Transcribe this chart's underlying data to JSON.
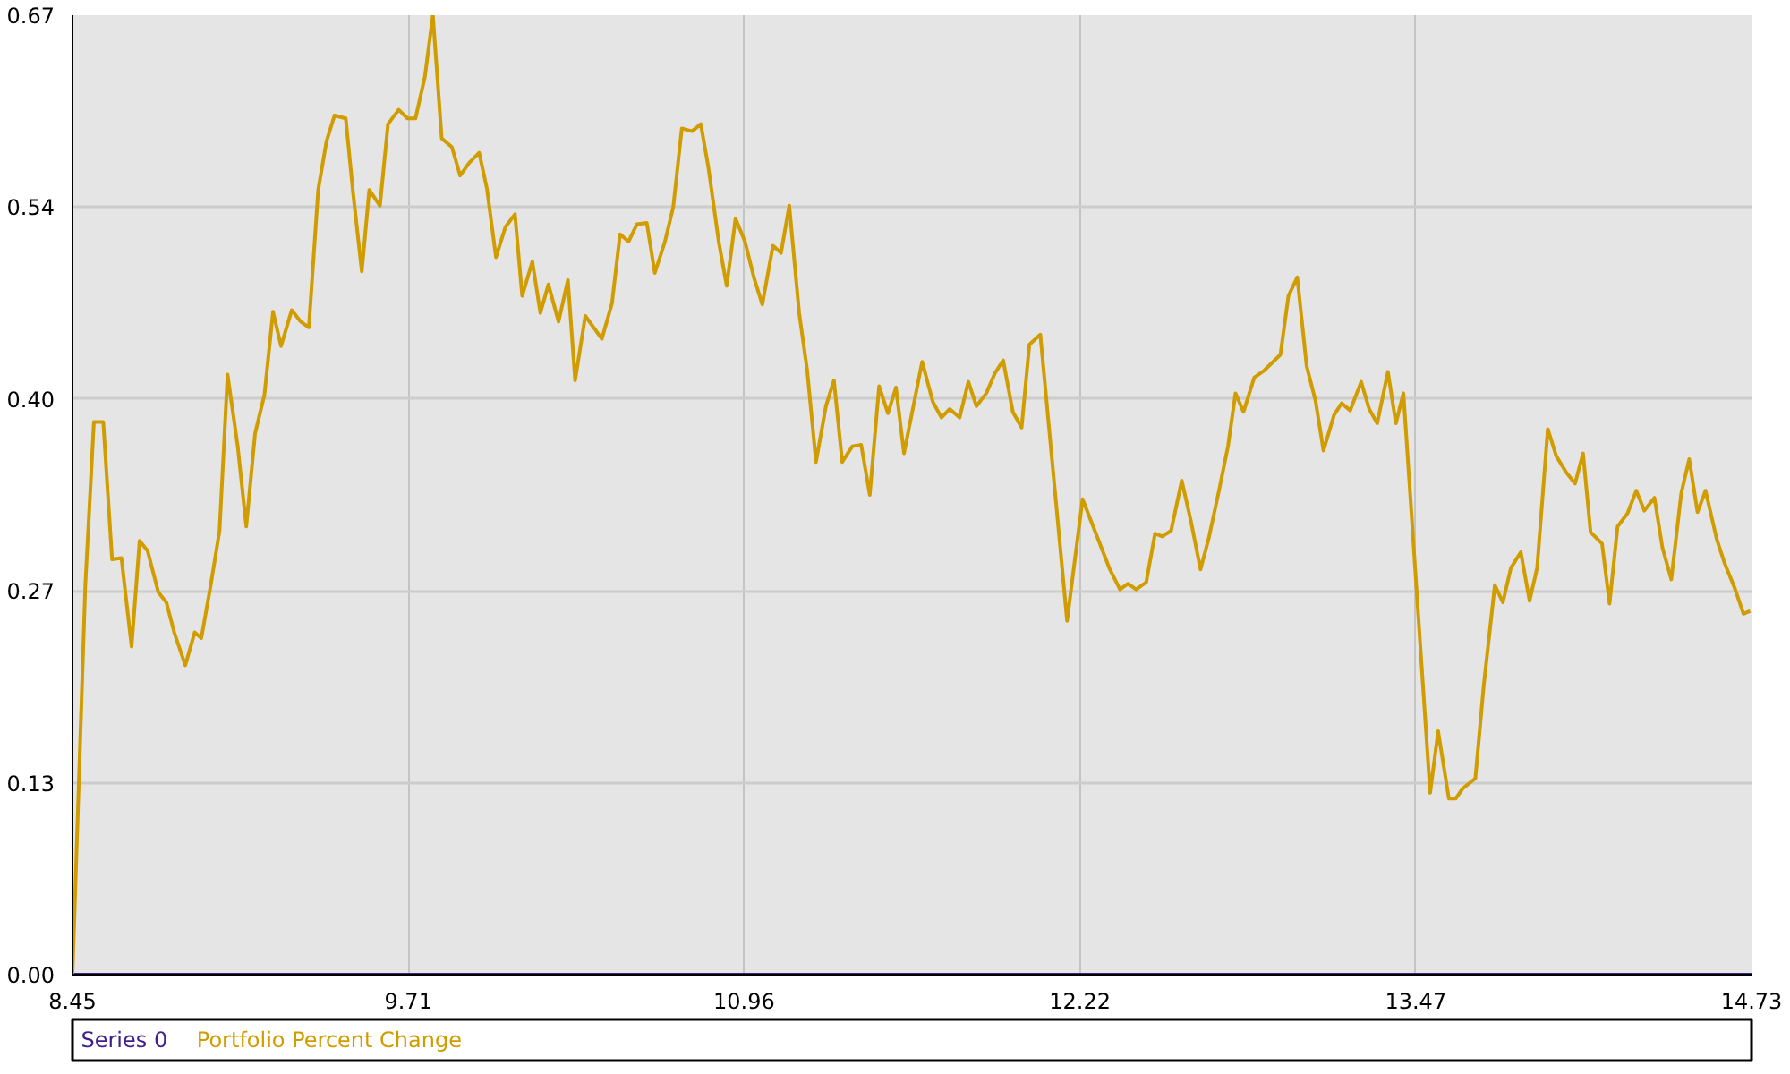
{
  "chart_data": {
    "type": "line",
    "xlim": [
      8.45,
      14.73
    ],
    "ylim": [
      0,
      0.67
    ],
    "xticks": [
      8.45,
      {
        "value": 9.706,
        "label": "9.71"
      },
      {
        "value": 10.962,
        "label": "10.96"
      },
      {
        "value": 12.218,
        "label": "12.22"
      },
      {
        "value": 13.474,
        "label": "13.47"
      },
      14.73
    ],
    "yticks": [
      {
        "value": 0,
        "label": "0.00"
      },
      {
        "value": 0.134,
        "label": "0.13"
      },
      {
        "value": 0.268,
        "label": "0.27"
      },
      {
        "value": 0.402,
        "label": "0.40"
      },
      {
        "value": 0.536,
        "label": "0.54"
      },
      0.67
    ],
    "grid": true,
    "legend": "bottom",
    "series": [
      {
        "name": "Series 0",
        "color": "#40208f",
        "x": [
          8.45,
          14.73
        ],
        "values": [
          0,
          0
        ]
      },
      {
        "name": "Portfolio Percent Change",
        "color": "#d09c00",
        "x": [
          8.45,
          8.498,
          8.53,
          8.565,
          8.598,
          8.633,
          8.671,
          8.701,
          8.731,
          8.771,
          8.801,
          8.832,
          8.872,
          8.907,
          8.932,
          8.967,
          9.0,
          9.03,
          9.068,
          9.1,
          9.133,
          9.168,
          9.2,
          9.23,
          9.27,
          9.304,
          9.334,
          9.369,
          9.4,
          9.43,
          9.472,
          9.5,
          9.532,
          9.56,
          9.6,
          9.63,
          9.67,
          9.703,
          9.733,
          9.768,
          9.798,
          9.831,
          9.869,
          9.9,
          9.934,
          9.971,
          10.0,
          10.034,
          10.069,
          10.105,
          10.132,
          10.17,
          10.2,
          10.23,
          10.268,
          10.303,
          10.33,
          10.368,
          10.43,
          10.468,
          10.498,
          10.53,
          10.561,
          10.598,
          10.628,
          10.666,
          10.697,
          10.729,
          10.767,
          10.8,
          10.829,
          10.867,
          10.897,
          10.93,
          10.965,
          11.0,
          11.03,
          11.07,
          11.1,
          11.131,
          11.168,
          11.198,
          11.231,
          11.268,
          11.298,
          11.329,
          11.367,
          11.4,
          11.432,
          11.467,
          11.5,
          11.53,
          11.56,
          11.595,
          11.628,
          11.668,
          11.7,
          11.731,
          11.768,
          11.801,
          11.831,
          11.868,
          11.9,
          11.931,
          11.967,
          12.0,
          12.029,
          12.07,
          12.17,
          12.228,
          12.278,
          12.33,
          12.368,
          12.398,
          12.428,
          12.466,
          12.499,
          12.526,
          12.559,
          12.599,
          12.634,
          12.669,
          12.699,
          12.737,
          12.772,
          12.8,
          12.83,
          12.87,
          12.908,
          12.968,
          12.998,
          13.031,
          13.066,
          13.099,
          13.129,
          13.169,
          13.197,
          13.229,
          13.27,
          13.3,
          13.33,
          13.37,
          13.4,
          13.428,
          13.528,
          13.558,
          13.598,
          13.624,
          13.65,
          13.697,
          13.729,
          13.77,
          13.8,
          13.83,
          13.867,
          13.9,
          13.928,
          13.968,
          14.0,
          14.036,
          14.07,
          14.1,
          14.128,
          14.171,
          14.199,
          14.229,
          14.266,
          14.299,
          14.329,
          14.367,
          14.397,
          14.43,
          14.467,
          14.497,
          14.528,
          14.558,
          14.6,
          14.63,
          14.667,
          14.7,
          14.725
        ],
        "values": [
          0.0,
          0.272,
          0.386,
          0.386,
          0.29,
          0.291,
          0.229,
          0.303,
          0.296,
          0.267,
          0.26,
          0.238,
          0.216,
          0.239,
          0.235,
          0.272,
          0.31,
          0.419,
          0.369,
          0.313,
          0.378,
          0.405,
          0.463,
          0.439,
          0.464,
          0.456,
          0.452,
          0.548,
          0.582,
          0.6,
          0.598,
          0.545,
          0.491,
          0.548,
          0.537,
          0.594,
          0.604,
          0.598,
          0.598,
          0.627,
          0.67,
          0.584,
          0.578,
          0.558,
          0.567,
          0.574,
          0.549,
          0.501,
          0.522,
          0.531,
          0.474,
          0.498,
          0.462,
          0.482,
          0.456,
          0.485,
          0.415,
          0.46,
          0.444,
          0.469,
          0.517,
          0.512,
          0.524,
          0.525,
          0.49,
          0.512,
          0.536,
          0.591,
          0.589,
          0.594,
          0.563,
          0.512,
          0.481,
          0.528,
          0.512,
          0.486,
          0.468,
          0.509,
          0.504,
          0.537,
          0.462,
          0.422,
          0.358,
          0.397,
          0.415,
          0.358,
          0.369,
          0.37,
          0.335,
          0.411,
          0.392,
          0.41,
          0.364,
          0.397,
          0.428,
          0.4,
          0.389,
          0.395,
          0.389,
          0.414,
          0.397,
          0.406,
          0.42,
          0.429,
          0.393,
          0.382,
          0.44,
          0.447,
          0.247,
          0.332,
          0.308,
          0.283,
          0.269,
          0.273,
          0.269,
          0.274,
          0.308,
          0.306,
          0.31,
          0.345,
          0.316,
          0.283,
          0.304,
          0.337,
          0.369,
          0.406,
          0.393,
          0.417,
          0.422,
          0.433,
          0.474,
          0.487,
          0.425,
          0.401,
          0.366,
          0.391,
          0.399,
          0.394,
          0.414,
          0.395,
          0.385,
          0.421,
          0.385,
          0.406,
          0.127,
          0.17,
          0.123,
          0.123,
          0.13,
          0.137,
          0.203,
          0.272,
          0.26,
          0.284,
          0.295,
          0.261,
          0.284,
          0.381,
          0.362,
          0.351,
          0.343,
          0.364,
          0.309,
          0.301,
          0.259,
          0.313,
          0.322,
          0.338,
          0.324,
          0.333,
          0.298,
          0.276,
          0.336,
          0.36,
          0.323,
          0.338,
          0.304,
          0.287,
          0.27,
          0.252,
          0.254
        ]
      }
    ]
  }
}
